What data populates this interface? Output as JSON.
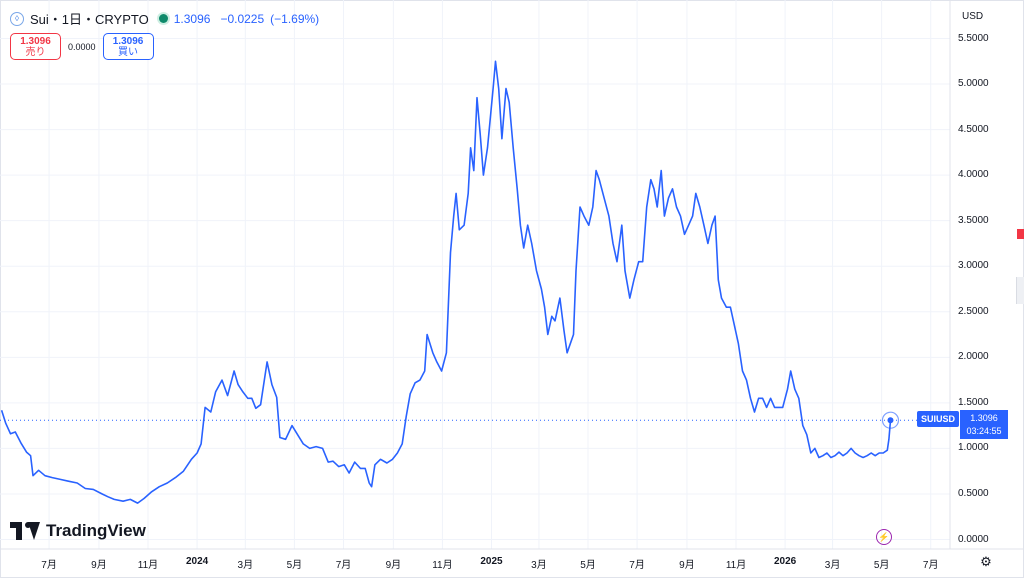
{
  "header": {
    "symbol_icon": "sui-drop-icon",
    "title": "Sui・1日・CRYPTO",
    "last_price": "1.3096",
    "change_abs": "−0.0225",
    "change_pct": "(−1.69%)",
    "live_dot_color": "#0f8a6b"
  },
  "trade": {
    "sell_price": "1.3096",
    "sell_label": "売り",
    "spread": "0.0000",
    "buy_price": "1.3096",
    "buy_label": "買い"
  },
  "axis": {
    "currency": "USD",
    "y_ticks": [
      "5.5000",
      "5.0000",
      "4.5000",
      "4.0000",
      "3.5000",
      "3.0000",
      "2.5000",
      "2.0000",
      "1.5000",
      "1.0000",
      "0.5000",
      "0.0000"
    ],
    "x_ticks": [
      {
        "label": "7月",
        "bold": false
      },
      {
        "label": "9月",
        "bold": false
      },
      {
        "label": "11月",
        "bold": false
      },
      {
        "label": "2024",
        "bold": true
      },
      {
        "label": "3月",
        "bold": false
      },
      {
        "label": "5月",
        "bold": false
      },
      {
        "label": "7月",
        "bold": false
      },
      {
        "label": "9月",
        "bold": false
      },
      {
        "label": "11月",
        "bold": false
      },
      {
        "label": "2025",
        "bold": true
      },
      {
        "label": "3月",
        "bold": false
      },
      {
        "label": "5月",
        "bold": false
      },
      {
        "label": "7月",
        "bold": false
      },
      {
        "label": "9月",
        "bold": false
      },
      {
        "label": "11月",
        "bold": false
      },
      {
        "label": "2026",
        "bold": true
      },
      {
        "label": "3月",
        "bold": false
      },
      {
        "label": "5月",
        "bold": false
      },
      {
        "label": "7月",
        "bold": false
      }
    ]
  },
  "last_price_tag": {
    "symbol": "SUIUSD",
    "price": "1.3096",
    "countdown": "03:24:55"
  },
  "branding": {
    "name": "TradingView",
    "icon": "tradingview-logo-icon"
  },
  "icons": {
    "flash": "lightning-icon",
    "settings": "gear-icon"
  },
  "colors": {
    "line": "#2962ff",
    "up": "#0f8a6b",
    "down": "#f23645"
  },
  "chart_data": {
    "type": "line",
    "series": [
      {
        "values": [
          [
            "2023-05-03",
            1.42
          ],
          [
            "2023-05-08",
            1.28
          ],
          [
            "2023-05-14",
            1.16
          ],
          [
            "2023-05-20",
            1.18
          ],
          [
            "2023-05-27",
            1.06
          ],
          [
            "2023-06-03",
            0.96
          ],
          [
            "2023-06-08",
            0.92
          ],
          [
            "2023-06-11",
            0.7
          ],
          [
            "2023-06-18",
            0.76
          ],
          [
            "2023-06-26",
            0.7
          ],
          [
            "2023-07-05",
            0.68
          ],
          [
            "2023-07-15",
            0.66
          ],
          [
            "2023-07-25",
            0.64
          ],
          [
            "2023-08-05",
            0.62
          ],
          [
            "2023-08-15",
            0.56
          ],
          [
            "2023-08-25",
            0.55
          ],
          [
            "2023-09-05",
            0.5
          ],
          [
            "2023-09-12",
            0.47
          ],
          [
            "2023-09-20",
            0.44
          ],
          [
            "2023-10-01",
            0.42
          ],
          [
            "2023-10-10",
            0.44
          ],
          [
            "2023-10-19",
            0.4
          ],
          [
            "2023-10-27",
            0.45
          ],
          [
            "2023-11-05",
            0.52
          ],
          [
            "2023-11-15",
            0.58
          ],
          [
            "2023-11-25",
            0.62
          ],
          [
            "2023-12-05",
            0.68
          ],
          [
            "2023-12-15",
            0.75
          ],
          [
            "2023-12-25",
            0.88
          ],
          [
            "2024-01-01",
            0.95
          ],
          [
            "2024-01-06",
            1.05
          ],
          [
            "2024-01-11",
            1.45
          ],
          [
            "2024-01-18",
            1.4
          ],
          [
            "2024-01-24",
            1.62
          ],
          [
            "2024-02-01",
            1.75
          ],
          [
            "2024-02-08",
            1.58
          ],
          [
            "2024-02-16",
            1.85
          ],
          [
            "2024-02-21",
            1.7
          ],
          [
            "2024-02-27",
            1.62
          ],
          [
            "2024-03-04",
            1.55
          ],
          [
            "2024-03-09",
            1.55
          ],
          [
            "2024-03-14",
            1.44
          ],
          [
            "2024-03-20",
            1.48
          ],
          [
            "2024-03-28",
            1.95
          ],
          [
            "2024-04-03",
            1.7
          ],
          [
            "2024-04-09",
            1.56
          ],
          [
            "2024-04-13",
            1.12
          ],
          [
            "2024-04-20",
            1.1
          ],
          [
            "2024-04-28",
            1.25
          ],
          [
            "2024-05-05",
            1.15
          ],
          [
            "2024-05-12",
            1.05
          ],
          [
            "2024-05-20",
            1.0
          ],
          [
            "2024-05-28",
            1.02
          ],
          [
            "2024-06-05",
            1.0
          ],
          [
            "2024-06-12",
            0.85
          ],
          [
            "2024-06-18",
            0.86
          ],
          [
            "2024-06-25",
            0.8
          ],
          [
            "2024-07-02",
            0.82
          ],
          [
            "2024-07-08",
            0.73
          ],
          [
            "2024-07-15",
            0.85
          ],
          [
            "2024-07-22",
            0.78
          ],
          [
            "2024-07-28",
            0.78
          ],
          [
            "2024-08-02",
            0.62
          ],
          [
            "2024-08-05",
            0.58
          ],
          [
            "2024-08-09",
            0.82
          ],
          [
            "2024-08-16",
            0.88
          ],
          [
            "2024-08-24",
            0.84
          ],
          [
            "2024-08-31",
            0.88
          ],
          [
            "2024-09-06",
            0.95
          ],
          [
            "2024-09-12",
            1.05
          ],
          [
            "2024-09-17",
            1.35
          ],
          [
            "2024-09-22",
            1.6
          ],
          [
            "2024-09-28",
            1.72
          ],
          [
            "2024-10-04",
            1.75
          ],
          [
            "2024-10-10",
            1.85
          ],
          [
            "2024-10-13",
            2.25
          ],
          [
            "2024-10-20",
            2.05
          ],
          [
            "2024-10-25",
            1.95
          ],
          [
            "2024-10-31",
            1.85
          ],
          [
            "2024-11-06",
            2.05
          ],
          [
            "2024-11-11",
            3.15
          ],
          [
            "2024-11-15",
            3.55
          ],
          [
            "2024-11-18",
            3.8
          ],
          [
            "2024-11-22",
            3.4
          ],
          [
            "2024-11-28",
            3.45
          ],
          [
            "2024-12-03",
            3.8
          ],
          [
            "2024-12-06",
            4.3
          ],
          [
            "2024-12-10",
            4.05
          ],
          [
            "2024-12-14",
            4.85
          ],
          [
            "2024-12-18",
            4.45
          ],
          [
            "2024-12-22",
            4.0
          ],
          [
            "2024-12-27",
            4.3
          ],
          [
            "2025-01-03",
            4.95
          ],
          [
            "2025-01-06",
            5.25
          ],
          [
            "2025-01-10",
            4.95
          ],
          [
            "2025-01-14",
            4.4
          ],
          [
            "2025-01-19",
            4.95
          ],
          [
            "2025-01-23",
            4.8
          ],
          [
            "2025-01-28",
            4.3
          ],
          [
            "2025-02-02",
            3.85
          ],
          [
            "2025-02-06",
            3.45
          ],
          [
            "2025-02-10",
            3.2
          ],
          [
            "2025-02-15",
            3.45
          ],
          [
            "2025-02-20",
            3.25
          ],
          [
            "2025-02-26",
            2.95
          ],
          [
            "2025-03-04",
            2.75
          ],
          [
            "2025-03-08",
            2.55
          ],
          [
            "2025-03-12",
            2.25
          ],
          [
            "2025-03-17",
            2.45
          ],
          [
            "2025-03-21",
            2.4
          ],
          [
            "2025-03-27",
            2.65
          ],
          [
            "2025-04-01",
            2.3
          ],
          [
            "2025-04-05",
            2.05
          ],
          [
            "2025-04-09",
            2.15
          ],
          [
            "2025-04-13",
            2.25
          ],
          [
            "2025-04-16",
            2.95
          ],
          [
            "2025-04-21",
            3.65
          ],
          [
            "2025-04-26",
            3.55
          ],
          [
            "2025-05-02",
            3.45
          ],
          [
            "2025-05-07",
            3.65
          ],
          [
            "2025-05-11",
            4.05
          ],
          [
            "2025-05-15",
            3.95
          ],
          [
            "2025-05-21",
            3.75
          ],
          [
            "2025-05-27",
            3.55
          ],
          [
            "2025-06-01",
            3.25
          ],
          [
            "2025-06-06",
            3.05
          ],
          [
            "2025-06-12",
            3.45
          ],
          [
            "2025-06-16",
            2.95
          ],
          [
            "2025-06-22",
            2.65
          ],
          [
            "2025-06-27",
            2.85
          ],
          [
            "2025-07-03",
            3.05
          ],
          [
            "2025-07-08",
            3.05
          ],
          [
            "2025-07-13",
            3.65
          ],
          [
            "2025-07-18",
            3.95
          ],
          [
            "2025-07-22",
            3.85
          ],
          [
            "2025-07-26",
            3.65
          ],
          [
            "2025-07-31",
            4.05
          ],
          [
            "2025-08-04",
            3.55
          ],
          [
            "2025-08-09",
            3.75
          ],
          [
            "2025-08-14",
            3.85
          ],
          [
            "2025-08-19",
            3.65
          ],
          [
            "2025-08-24",
            3.55
          ],
          [
            "2025-08-29",
            3.35
          ],
          [
            "2025-09-03",
            3.45
          ],
          [
            "2025-09-08",
            3.55
          ],
          [
            "2025-09-12",
            3.8
          ],
          [
            "2025-09-17",
            3.65
          ],
          [
            "2025-09-22",
            3.45
          ],
          [
            "2025-09-27",
            3.25
          ],
          [
            "2025-10-02",
            3.45
          ],
          [
            "2025-10-06",
            3.55
          ],
          [
            "2025-10-10",
            2.85
          ],
          [
            "2025-10-14",
            2.65
          ],
          [
            "2025-10-20",
            2.55
          ],
          [
            "2025-10-25",
            2.55
          ],
          [
            "2025-10-30",
            2.35
          ],
          [
            "2025-11-04",
            2.15
          ],
          [
            "2025-11-09",
            1.85
          ],
          [
            "2025-11-14",
            1.75
          ],
          [
            "2025-11-19",
            1.55
          ],
          [
            "2025-11-24",
            1.4
          ],
          [
            "2025-11-29",
            1.55
          ],
          [
            "2025-12-04",
            1.55
          ],
          [
            "2025-12-09",
            1.45
          ],
          [
            "2025-12-14",
            1.55
          ],
          [
            "2025-12-19",
            1.45
          ],
          [
            "2025-12-24",
            1.45
          ],
          [
            "2025-12-29",
            1.45
          ],
          [
            "2026-01-04",
            1.65
          ],
          [
            "2026-01-08",
            1.85
          ],
          [
            "2026-01-13",
            1.65
          ],
          [
            "2026-01-18",
            1.55
          ],
          [
            "2026-01-23",
            1.25
          ],
          [
            "2026-01-28",
            1.15
          ],
          [
            "2026-02-02",
            0.95
          ],
          [
            "2026-02-07",
            1.0
          ],
          [
            "2026-02-12",
            0.9
          ],
          [
            "2026-02-17",
            0.92
          ],
          [
            "2026-02-22",
            0.95
          ],
          [
            "2026-02-27",
            0.9
          ],
          [
            "2026-03-04",
            0.92
          ],
          [
            "2026-03-09",
            0.96
          ],
          [
            "2026-03-14",
            0.92
          ],
          [
            "2026-03-19",
            0.95
          ],
          [
            "2026-03-24",
            1.0
          ],
          [
            "2026-03-29",
            0.95
          ],
          [
            "2026-04-03",
            0.92
          ],
          [
            "2026-04-08",
            0.9
          ],
          [
            "2026-04-13",
            0.92
          ],
          [
            "2026-04-18",
            0.95
          ],
          [
            "2026-04-23",
            0.92
          ],
          [
            "2026-04-28",
            0.95
          ],
          [
            "2026-05-03",
            0.95
          ],
          [
            "2026-05-08",
            0.98
          ],
          [
            "2026-05-10",
            1.1
          ],
          [
            "2026-05-12",
            1.31
          ]
        ]
      }
    ],
    "ylim": [
      0.0,
      5.5
    ],
    "xlim": [
      "2023-05-01",
      "2026-07-25"
    ],
    "grid": true,
    "last_value": 1.3096
  }
}
